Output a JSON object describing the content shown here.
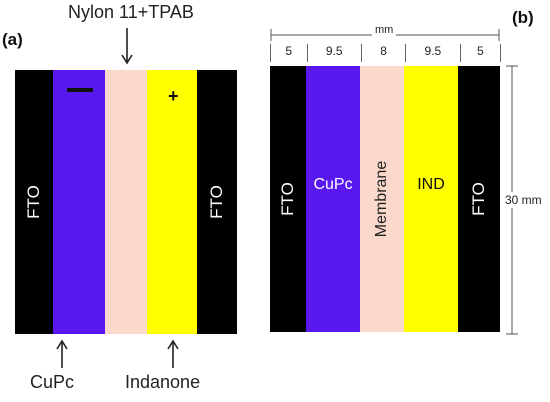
{
  "panel_a": {
    "label": "(a)",
    "top_callout": "Nylon 11+TPAB",
    "bottom_left_callout": "CuPc",
    "bottom_right_callout": "Indanone",
    "layers": [
      {
        "id": "fto-left",
        "text": "FTO",
        "color": "#000000",
        "text_color": "#ffffff"
      },
      {
        "id": "cupc",
        "text": "",
        "color": "#5a18f0",
        "text_color": "#ffffff",
        "sign": "—"
      },
      {
        "id": "membrane",
        "text": "",
        "color": "#fbd8cc",
        "text_color": "#222222"
      },
      {
        "id": "indanone",
        "text": "",
        "color": "#ffff00",
        "text_color": "#111111",
        "sign": "+"
      },
      {
        "id": "fto-right",
        "text": "FTO",
        "color": "#000000",
        "text_color": "#ffffff"
      }
    ]
  },
  "panel_b": {
    "label": "(b)",
    "unit_label": "mm",
    "height_label": "30 mm",
    "layers": [
      {
        "id": "fto-left",
        "text": "FTO",
        "width_label": "5",
        "color": "#000000",
        "text_color": "#ffffff"
      },
      {
        "id": "cupc",
        "text": "CuPc",
        "width_label": "9.5",
        "color": "#5a18f0",
        "text_color": "#ffffff"
      },
      {
        "id": "membrane",
        "text": "Membrane",
        "width_label": "8",
        "color": "#fbd8cc",
        "text_color": "#222222"
      },
      {
        "id": "ind",
        "text": "IND",
        "width_label": "9.5",
        "color": "#ffff00",
        "text_color": "#111111"
      },
      {
        "id": "fto-right",
        "text": "FTO",
        "width_label": "5",
        "color": "#000000",
        "text_color": "#ffffff"
      }
    ]
  }
}
